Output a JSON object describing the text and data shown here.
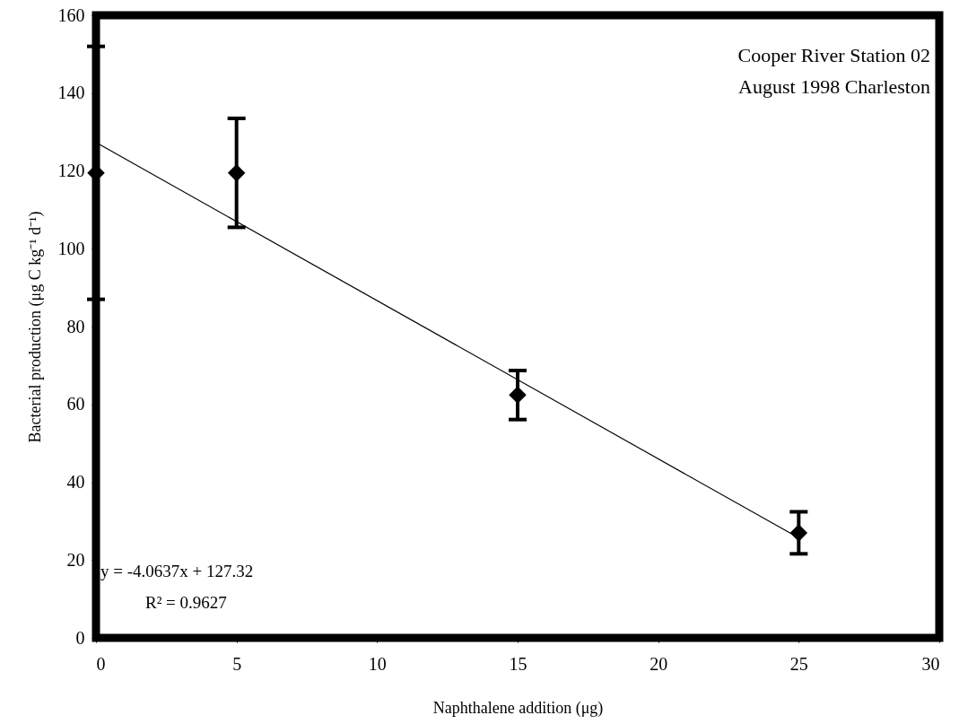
{
  "chart_data": {
    "type": "scatter",
    "xlabel": "Naphthalene addition (μg)",
    "ylabel": "Bacterial production (μg C kg⁻¹ d⁻¹)",
    "x": [
      0,
      5,
      15,
      25
    ],
    "series": [
      {
        "color": "#000000",
        "values": [
          119.5,
          119.5,
          62.4,
          27
        ],
        "errors": [
          32.5,
          14,
          6.3,
          5.4
        ]
      },
      {
        "type": "line",
        "marker": "none",
        "color": "#000000",
        "x": [
          0,
          25
        ],
        "values": [
          127.3,
          25.7
        ]
      }
    ],
    "marker": "diamond",
    "xlim": [
      0,
      30
    ],
    "xticks": [
      0,
      5,
      10,
      15,
      20,
      25,
      30
    ],
    "ylim": [
      0,
      160
    ],
    "yticks": [
      0,
      20,
      40,
      60,
      80,
      100,
      120,
      140,
      160
    ],
    "annotations": [
      "Cooper River Station 02",
      "August 1998 Charleston",
      "y = -4.0637x + 127.32",
      "R² = 0.9627"
    ]
  }
}
